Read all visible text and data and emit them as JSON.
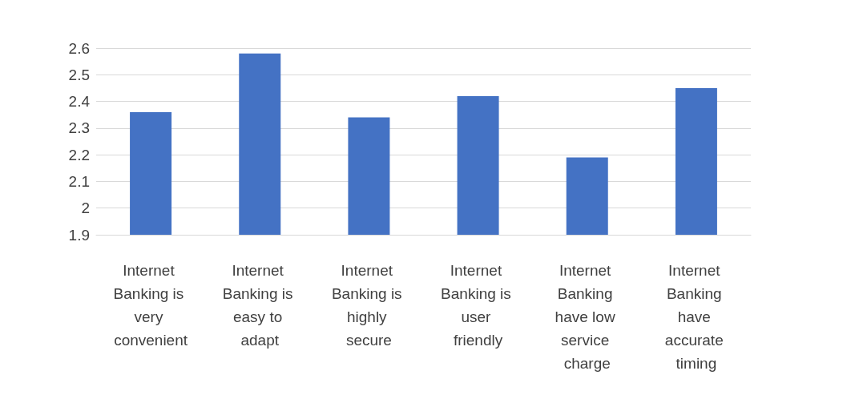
{
  "chart_data": {
    "type": "bar",
    "categories": [
      "Internet Banking is very convenient",
      "Internet Banking is easy to adapt",
      "Internet Banking is highly secure",
      "Internet Banking is user friendly",
      "Internet Banking have low service charge",
      "Internet Banking have accurate timing"
    ],
    "values": [
      2.36,
      2.58,
      2.34,
      2.42,
      2.19,
      2.45
    ],
    "color": "#4472c4",
    "ylim": [
      1.9,
      2.6
    ],
    "yticks": [
      1.9,
      2,
      2.1,
      2.2,
      2.3,
      2.4,
      2.5,
      2.6
    ],
    "grid": true
  }
}
